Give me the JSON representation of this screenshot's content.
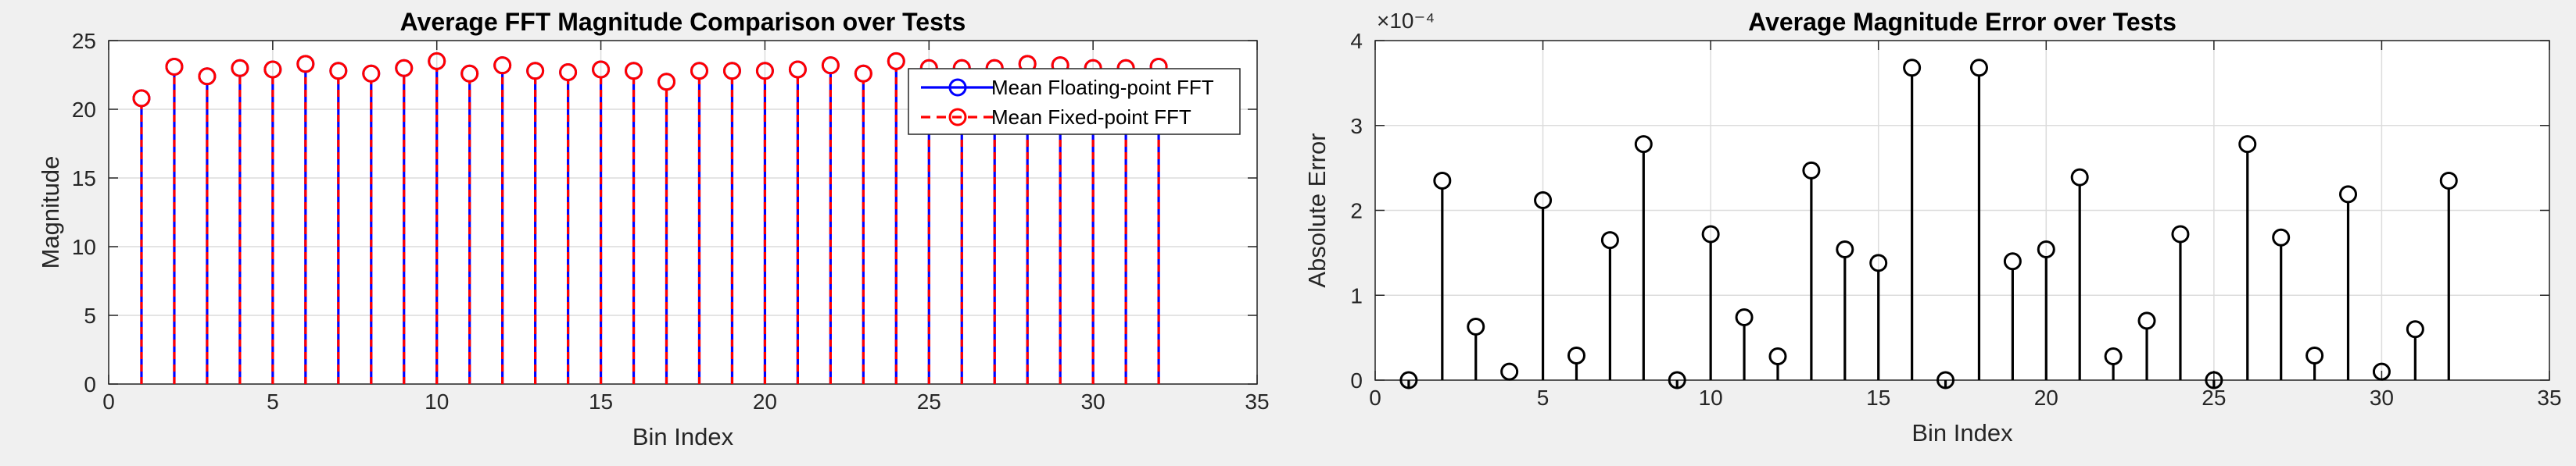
{
  "colors": {
    "figure_bg": "#f0f0f0",
    "axes_bg": "#ffffff",
    "grid": "#dcdcdc",
    "axis": "#262626",
    "floating_stem": "#0000ff",
    "fixed_stem": "#ff0000",
    "error_stem": "#000000"
  },
  "chart_data": [
    {
      "type": "stem",
      "title": "Average FFT Magnitude Comparison over Tests",
      "xlabel": "Bin Index",
      "ylabel": "Magnitude",
      "xlim": [
        0,
        35
      ],
      "ylim": [
        0,
        25
      ],
      "xticks": [
        0,
        5,
        10,
        15,
        20,
        25,
        30,
        35
      ],
      "yticks": [
        0,
        5,
        10,
        15,
        20,
        25
      ],
      "xtick_labels": [
        "0",
        "5",
        "10",
        "15",
        "20",
        "25",
        "30",
        "35"
      ],
      "ytick_labels": [
        "0",
        "5",
        "10",
        "15",
        "20",
        "25"
      ],
      "grid": true,
      "legend_position": "top-right",
      "x": [
        1,
        2,
        3,
        4,
        5,
        6,
        7,
        8,
        9,
        10,
        11,
        12,
        13,
        14,
        15,
        16,
        17,
        18,
        19,
        20,
        21,
        22,
        23,
        24,
        25,
        26,
        27,
        28,
        29,
        30,
        31,
        32
      ],
      "series": [
        {
          "name": "Mean Floating-point FFT",
          "line_style": "solid",
          "marker": "circle",
          "color": "#0000ff",
          "values": [
            20.8,
            23.1,
            22.4,
            23.0,
            22.9,
            23.3,
            22.8,
            22.6,
            23.0,
            23.5,
            22.6,
            23.2,
            22.8,
            22.7,
            22.9,
            22.8,
            22.0,
            22.8,
            22.8,
            22.8,
            22.9,
            23.2,
            22.6,
            23.5,
            23.0,
            23.0,
            23.0,
            23.3,
            23.2,
            23.0,
            23.0,
            23.1
          ]
        },
        {
          "name": "Mean Fixed-point FFT",
          "line_style": "dashed",
          "marker": "circle",
          "color": "#ff0000",
          "values": [
            20.8,
            23.1,
            22.4,
            23.0,
            22.9,
            23.3,
            22.8,
            22.6,
            23.0,
            23.5,
            22.6,
            23.2,
            22.8,
            22.7,
            22.9,
            22.8,
            22.0,
            22.8,
            22.8,
            22.8,
            22.9,
            23.2,
            22.6,
            23.5,
            23.0,
            23.0,
            23.0,
            23.3,
            23.2,
            23.0,
            23.0,
            23.1
          ]
        }
      ]
    },
    {
      "type": "stem",
      "title": "Average Magnitude Error over Tests",
      "xlabel": "Bin Index",
      "ylabel": "Absolute Error",
      "exponent_label": "×10⁻⁴",
      "xlim": [
        0,
        35
      ],
      "ylim": [
        0,
        4
      ],
      "xticks": [
        0,
        5,
        10,
        15,
        20,
        25,
        30,
        35
      ],
      "yticks": [
        0,
        1,
        2,
        3,
        4
      ],
      "xtick_labels": [
        "0",
        "5",
        "10",
        "15",
        "20",
        "25",
        "30",
        "35"
      ],
      "ytick_labels": [
        "0",
        "1",
        "2",
        "3",
        "4"
      ],
      "grid": true,
      "x": [
        1,
        2,
        3,
        4,
        5,
        6,
        7,
        8,
        9,
        10,
        11,
        12,
        13,
        14,
        15,
        16,
        17,
        18,
        19,
        20,
        21,
        22,
        23,
        24,
        25,
        26,
        27,
        28,
        29,
        30,
        31,
        32
      ],
      "series": [
        {
          "line_style": "solid",
          "marker": "circle",
          "color": "#000000",
          "values": [
            0.0,
            2.35,
            0.63,
            0.1,
            2.12,
            0.29,
            1.65,
            2.78,
            0.0,
            1.72,
            0.74,
            0.28,
            2.47,
            1.54,
            1.38,
            3.68,
            0.0,
            3.68,
            1.4,
            1.54,
            2.39,
            0.28,
            0.7,
            1.72,
            0.0,
            2.78,
            1.68,
            0.29,
            2.19,
            0.1,
            0.6,
            2.35
          ]
        }
      ]
    }
  ]
}
